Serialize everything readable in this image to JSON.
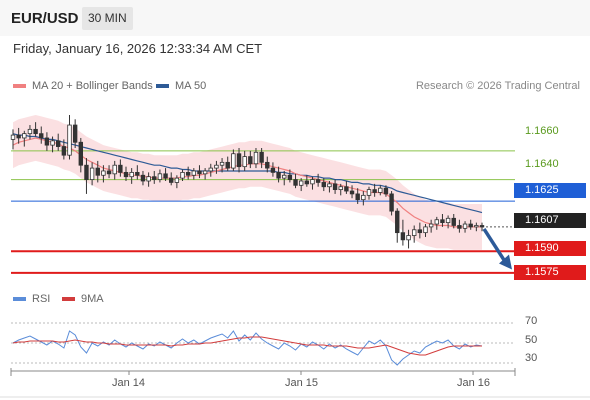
{
  "header": {
    "symbol": "EUR/USD",
    "timeframe": "30 MIN"
  },
  "timestamp": "Friday, January 16, 2026 12:33:34 AM CET",
  "legend": {
    "ma20_label": "MA 20 + Bollinger Bands",
    "ma50_label": "MA 50",
    "rsi_label": "RSI",
    "rsi9ma_label": "9MA"
  },
  "credit": "Research © 2026 Trading Central",
  "colors": {
    "ma20": "#f08080",
    "ma50": "#2d5a96",
    "bands": "#fadadd",
    "resistance": "#8bc34a",
    "pivot": "#1f5fd6",
    "support": "#e01b1b",
    "rsi": "#5b8dd9",
    "rsi9ma": "#d23c3c",
    "arrow": "#2c5a99"
  },
  "levels": [
    {
      "value": "1.1660",
      "type": "resistance"
    },
    {
      "value": "1.1640",
      "type": "resistance"
    },
    {
      "value": "1.1625",
      "type": "pivot"
    },
    {
      "value": "1.1607",
      "type": "last"
    },
    {
      "value": "1.1590",
      "type": "support"
    },
    {
      "value": "1.1575",
      "type": "support"
    }
  ],
  "rsi_ticks": [
    "70",
    "50",
    "30"
  ],
  "x_labels": [
    "Jan 14",
    "Jan 15",
    "Jan 16"
  ],
  "chart_data": {
    "type": "candlestick",
    "price_range": [
      1.157,
      1.1685
    ],
    "last_price": 1.1607,
    "candles": [
      [
        1.1668,
        1.1675,
        1.1661,
        1.1671
      ],
      [
        1.1671,
        1.1676,
        1.1665,
        1.1669
      ],
      [
        1.1669,
        1.1674,
        1.1663,
        1.1672
      ],
      [
        1.1672,
        1.1678,
        1.1668,
        1.1675
      ],
      [
        1.1675,
        1.168,
        1.167,
        1.1672
      ],
      [
        1.1672,
        1.1677,
        1.1665,
        1.1669
      ],
      [
        1.1669,
        1.1673,
        1.166,
        1.1664
      ],
      [
        1.1664,
        1.167,
        1.1659,
        1.1667
      ],
      [
        1.1667,
        1.1672,
        1.166,
        1.1663
      ],
      [
        1.1663,
        1.1668,
        1.1654,
        1.1657
      ],
      [
        1.1657,
        1.1685,
        1.1654,
        1.1678
      ],
      [
        1.1678,
        1.1682,
        1.1662,
        1.1666
      ],
      [
        1.1666,
        1.1669,
        1.1645,
        1.165
      ],
      [
        1.165,
        1.1655,
        1.163,
        1.164
      ],
      [
        1.164,
        1.1652,
        1.1636,
        1.1648
      ],
      [
        1.1648,
        1.1653,
        1.1638,
        1.1643
      ],
      [
        1.1643,
        1.165,
        1.1638,
        1.1646
      ],
      [
        1.1646,
        1.165,
        1.1641,
        1.1644
      ],
      [
        1.1644,
        1.1653,
        1.164,
        1.165
      ],
      [
        1.165,
        1.1654,
        1.1642,
        1.1645
      ],
      [
        1.1645,
        1.1649,
        1.1639,
        1.1642
      ],
      [
        1.1642,
        1.1648,
        1.1637,
        1.1645
      ],
      [
        1.1645,
        1.165,
        1.164,
        1.1643
      ],
      [
        1.1643,
        1.1646,
        1.1636,
        1.1639
      ],
      [
        1.1639,
        1.1645,
        1.1635,
        1.1642
      ],
      [
        1.1642,
        1.1646,
        1.1637,
        1.164
      ],
      [
        1.164,
        1.1647,
        1.1638,
        1.1644
      ],
      [
        1.1644,
        1.1648,
        1.1639,
        1.1641
      ],
      [
        1.1641,
        1.1645,
        1.1636,
        1.1638
      ],
      [
        1.1638,
        1.1643,
        1.1634,
        1.1641
      ],
      [
        1.1641,
        1.1647,
        1.1639,
        1.1645
      ],
      [
        1.1645,
        1.1649,
        1.164,
        1.1643
      ],
      [
        1.1643,
        1.1648,
        1.164,
        1.1646
      ],
      [
        1.1646,
        1.165,
        1.1641,
        1.1644
      ],
      [
        1.1644,
        1.1648,
        1.164,
        1.1646
      ],
      [
        1.1646,
        1.1651,
        1.1642,
        1.1648
      ],
      [
        1.1648,
        1.1653,
        1.1644,
        1.165
      ],
      [
        1.165,
        1.1655,
        1.1645,
        1.1652
      ],
      [
        1.1652,
        1.1656,
        1.1646,
        1.1648
      ],
      [
        1.1648,
        1.1661,
        1.1646,
        1.1658
      ],
      [
        1.1658,
        1.1662,
        1.1645,
        1.1649
      ],
      [
        1.1649,
        1.166,
        1.1646,
        1.1656
      ],
      [
        1.1656,
        1.166,
        1.1648,
        1.1651
      ],
      [
        1.1651,
        1.1662,
        1.1648,
        1.1659
      ],
      [
        1.1659,
        1.1662,
        1.1648,
        1.1652
      ],
      [
        1.1652,
        1.1656,
        1.1645,
        1.1648
      ],
      [
        1.1648,
        1.1652,
        1.1642,
        1.1645
      ],
      [
        1.1645,
        1.1649,
        1.1638,
        1.1641
      ],
      [
        1.1641,
        1.1646,
        1.1636,
        1.1643
      ],
      [
        1.1643,
        1.1647,
        1.1638,
        1.164
      ],
      [
        1.164,
        1.1644,
        1.1634,
        1.1636
      ],
      [
        1.1636,
        1.1641,
        1.1632,
        1.1639
      ],
      [
        1.1639,
        1.1643,
        1.1635,
        1.1637
      ],
      [
        1.1637,
        1.1642,
        1.1633,
        1.164
      ],
      [
        1.164,
        1.1644,
        1.1635,
        1.1638
      ],
      [
        1.1638,
        1.1641,
        1.1632,
        1.1635
      ],
      [
        1.1635,
        1.1639,
        1.1631,
        1.1637
      ],
      [
        1.1637,
        1.164,
        1.163,
        1.1633
      ],
      [
        1.1633,
        1.1637,
        1.1629,
        1.1635
      ],
      [
        1.1635,
        1.1639,
        1.163,
        1.1632
      ],
      [
        1.1632,
        1.1636,
        1.1627,
        1.163
      ],
      [
        1.163,
        1.1634,
        1.1623,
        1.1626
      ],
      [
        1.1626,
        1.1632,
        1.1622,
        1.1629
      ],
      [
        1.1629,
        1.1635,
        1.1626,
        1.1633
      ],
      [
        1.1633,
        1.1637,
        1.1628,
        1.1631
      ],
      [
        1.1631,
        1.1636,
        1.1629,
        1.1634
      ],
      [
        1.1634,
        1.1636,
        1.1628,
        1.163
      ],
      [
        1.163,
        1.1632,
        1.1615,
        1.1618
      ],
      [
        1.1618,
        1.162,
        1.1596,
        1.1603
      ],
      [
        1.1603,
        1.1612,
        1.1594,
        1.1598
      ],
      [
        1.1598,
        1.1605,
        1.1592,
        1.1601
      ],
      [
        1.1601,
        1.1608,
        1.1596,
        1.1605
      ],
      [
        1.1605,
        1.161,
        1.1599,
        1.1603
      ],
      [
        1.1603,
        1.1609,
        1.16,
        1.1607
      ],
      [
        1.1607,
        1.1612,
        1.1603,
        1.1609
      ],
      [
        1.1609,
        1.1614,
        1.1605,
        1.1612
      ],
      [
        1.1612,
        1.1616,
        1.1607,
        1.161
      ],
      [
        1.161,
        1.1615,
        1.1606,
        1.1613
      ],
      [
        1.1613,
        1.1616,
        1.1606,
        1.1608
      ],
      [
        1.1608,
        1.1612,
        1.1603,
        1.1606
      ],
      [
        1.1606,
        1.1611,
        1.1603,
        1.1609
      ],
      [
        1.1609,
        1.1612,
        1.1605,
        1.1607
      ],
      [
        1.1607,
        1.161,
        1.1604,
        1.1608
      ],
      [
        1.1608,
        1.161,
        1.1604,
        1.1607
      ]
    ],
    "ma20": [
      1.1664,
      1.1666,
      1.1667,
      1.1668,
      1.1669,
      1.1668,
      1.1667,
      1.1666,
      1.1665,
      1.1663,
      1.1662,
      1.166,
      1.1657,
      1.1654,
      1.1652,
      1.165,
      1.1648,
      1.1647,
      1.1646,
      1.1645,
      1.1644,
      1.1643,
      1.1643,
      1.1642,
      1.1642,
      1.1641,
      1.1641,
      1.1641,
      1.1641,
      1.1641,
      1.1642,
      1.1642,
      1.1643,
      1.1643,
      1.1644,
      1.1645,
      1.1646,
      1.1647,
      1.1648,
      1.1649,
      1.165,
      1.165,
      1.1651,
      1.1651,
      1.1651,
      1.165,
      1.1649,
      1.1648,
      1.1647,
      1.1646,
      1.1644,
      1.1643,
      1.1642,
      1.1641,
      1.164,
      1.1639,
      1.1638,
      1.1637,
      1.1636,
      1.1635,
      1.1634,
      1.1633,
      1.1632,
      1.1631,
      1.1631,
      1.1631,
      1.163,
      1.1627,
      1.1624,
      1.162,
      1.1617,
      1.1614,
      1.1612,
      1.161,
      1.1609,
      1.1608,
      1.1608,
      1.1608,
      1.1607,
      1.1607,
      1.1607,
      1.1607,
      1.1607,
      1.1607
    ],
    "bollinger_width": 0.0016,
    "ma50": [
      1.1672,
      1.1671,
      1.1671,
      1.167,
      1.167,
      1.1669,
      1.1668,
      1.1668,
      1.1667,
      1.1666,
      1.1665,
      1.1664,
      1.1663,
      1.1662,
      1.1661,
      1.166,
      1.1659,
      1.1658,
      1.1657,
      1.1656,
      1.1655,
      1.1654,
      1.1653,
      1.1652,
      1.1651,
      1.165,
      1.165,
      1.1649,
      1.1648,
      1.1648,
      1.1647,
      1.1647,
      1.1646,
      1.1646,
      1.1646,
      1.1646,
      1.1646,
      1.1646,
      1.1646,
      1.1646,
      1.1646,
      1.1646,
      1.1646,
      1.1646,
      1.1646,
      1.1646,
      1.1646,
      1.1645,
      1.1645,
      1.1644,
      1.1644,
      1.1643,
      1.1643,
      1.1642,
      1.1642,
      1.1641,
      1.1641,
      1.164,
      1.164,
      1.1639,
      1.1638,
      1.1638,
      1.1637,
      1.1637,
      1.1636,
      1.1636,
      1.1635,
      1.1634,
      1.1632,
      1.1631,
      1.163,
      1.1629,
      1.1628,
      1.1627,
      1.1626,
      1.1625,
      1.1624,
      1.1623,
      1.1622,
      1.1621,
      1.162,
      1.1619,
      1.1618,
      1.1617
    ],
    "forecast": {
      "from": 1.1607,
      "to": 1.1578
    },
    "rsi": [
      50,
      53,
      55,
      57,
      54,
      51,
      48,
      52,
      49,
      45,
      62,
      58,
      46,
      40,
      50,
      47,
      51,
      48,
      53,
      49,
      46,
      50,
      47,
      44,
      49,
      47,
      51,
      48,
      45,
      50,
      54,
      50,
      53,
      49,
      52,
      55,
      57,
      59,
      55,
      62,
      52,
      58,
      53,
      60,
      54,
      50,
      47,
      44,
      50,
      47,
      43,
      49,
      46,
      51,
      48,
      44,
      49,
      45,
      48,
      44,
      41,
      38,
      45,
      52,
      49,
      53,
      47,
      33,
      28,
      34,
      38,
      42,
      40,
      46,
      49,
      52,
      50,
      53,
      47,
      44,
      49,
      46,
      48,
      47
    ],
    "rsi9ma": [
      50,
      51,
      51,
      52,
      52,
      52,
      52,
      52,
      51,
      51,
      52,
      53,
      52,
      51,
      51,
      50,
      50,
      49,
      49,
      49,
      48,
      48,
      48,
      48,
      48,
      48,
      48,
      48,
      47,
      48,
      48,
      49,
      49,
      49,
      50,
      50,
      51,
      52,
      53,
      54,
      55,
      55,
      56,
      56,
      56,
      55,
      54,
      53,
      52,
      51,
      50,
      49,
      48,
      48,
      48,
      48,
      47,
      47,
      47,
      47,
      46,
      45,
      45,
      45,
      46,
      47,
      48,
      46,
      44,
      42,
      40,
      39,
      38,
      38,
      40,
      42,
      44,
      46,
      47,
      47,
      47,
      47,
      47,
      47
    ],
    "rsi_range": [
      20,
      80
    ]
  }
}
